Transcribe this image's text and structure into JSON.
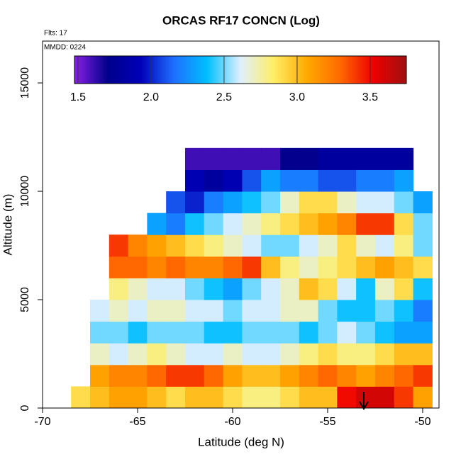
{
  "chart_data": {
    "type": "heatmap",
    "title": "ORCAS RF17 CONCN (Log)",
    "annotations": [
      "Flts: 17",
      "MMDD: 0224"
    ],
    "x_label": "Latitude (deg N)",
    "y_label": "Altitude (m)",
    "xlim": [
      -70,
      -49.14
    ],
    "ylim": [
      0,
      16930
    ],
    "xticks": [
      -70,
      -65,
      -60,
      -55,
      -50
    ],
    "yticks": [
      0,
      5000,
      10000,
      15000
    ],
    "x_bins": [
      -68.5,
      -67.5,
      -66.5,
      -65.5,
      -64.5,
      -63.5,
      -62.5,
      -61.5,
      -60.5,
      -59.5,
      -58.5,
      -57.5,
      -56.5,
      -55.5,
      -54.5,
      -53.5,
      -52.5,
      -51.5,
      -50.5,
      -49.5
    ],
    "y_bins": [
      0,
      1000,
      2000,
      3000,
      4000,
      5000,
      6000,
      7000,
      8000,
      9000,
      10000,
      11000,
      12000
    ],
    "z": [
      [
        2.9,
        3.0,
        3.1,
        3.1,
        3.0,
        2.9,
        3.0,
        3.0,
        2.9,
        2.8,
        2.8,
        2.9,
        3.0,
        3.0,
        3.5,
        3.6,
        3.6,
        3.4,
        3.1
      ],
      [
        null,
        3.1,
        3.2,
        3.2,
        3.3,
        3.4,
        3.4,
        3.3,
        3.1,
        3.0,
        3.0,
        3.1,
        3.2,
        3.3,
        3.2,
        3.1,
        3.2,
        3.3,
        3.4
      ],
      [
        null,
        2.7,
        2.6,
        2.7,
        2.8,
        2.7,
        2.6,
        2.6,
        2.7,
        2.6,
        2.6,
        2.7,
        2.8,
        2.9,
        2.8,
        2.8,
        2.9,
        3.0,
        3.0
      ],
      [
        null,
        2.5,
        2.5,
        2.4,
        2.5,
        2.5,
        2.5,
        2.4,
        2.4,
        2.5,
        2.5,
        2.5,
        2.4,
        2.5,
        2.6,
        2.5,
        2.4,
        2.3,
        2.3
      ],
      [
        null,
        2.6,
        2.7,
        2.6,
        2.7,
        2.7,
        2.6,
        2.6,
        2.5,
        2.6,
        2.6,
        2.7,
        2.7,
        2.5,
        2.4,
        2.4,
        2.5,
        2.4,
        2.2
      ],
      [
        null,
        null,
        2.8,
        2.7,
        2.6,
        2.6,
        2.5,
        2.4,
        2.3,
        2.5,
        2.6,
        2.7,
        3.0,
        2.9,
        2.6,
        2.4,
        2.7,
        2.9,
        2.4
      ],
      [
        null,
        null,
        3.3,
        3.3,
        3.2,
        3.3,
        3.2,
        3.2,
        3.3,
        3.4,
        3.0,
        2.8,
        2.7,
        2.8,
        2.9,
        3.0,
        3.1,
        3.0,
        2.9
      ],
      [
        null,
        null,
        3.4,
        3.2,
        3.1,
        3.0,
        2.9,
        2.8,
        2.7,
        2.6,
        2.5,
        2.5,
        2.6,
        2.7,
        2.9,
        2.7,
        2.6,
        2.8,
        2.5
      ],
      [
        null,
        null,
        null,
        null,
        2.3,
        2.2,
        2.4,
        2.5,
        2.6,
        2.7,
        2.8,
        2.9,
        3.0,
        3.1,
        3.2,
        3.4,
        3.4,
        2.9,
        2.5
      ],
      [
        null,
        null,
        null,
        null,
        null,
        2.1,
        2.0,
        2.2,
        2.3,
        2.4,
        2.5,
        2.7,
        2.9,
        2.9,
        2.7,
        2.6,
        2.6,
        2.5,
        2.3
      ],
      [
        null,
        null,
        null,
        null,
        null,
        null,
        1.9,
        1.8,
        1.9,
        2.1,
        2.3,
        2.2,
        2.2,
        2.1,
        2.1,
        2.2,
        2.2,
        2.3,
        null
      ],
      [
        null,
        null,
        null,
        null,
        null,
        null,
        1.6,
        1.6,
        1.6,
        1.6,
        1.6,
        1.7,
        1.7,
        1.8,
        1.8,
        1.8,
        1.8,
        1.8,
        null
      ]
    ],
    "zlim": [
      1.476,
      3.748
    ],
    "zticks": [
      1.5,
      {
        "value": 2,
        "label": "2.0"
      },
      2.5,
      {
        "value": 3,
        "label": "3.0"
      },
      3.5
    ],
    "colormap": [
      "#8b1fe6",
      "#00008b",
      "#0000b8",
      "#1e6fff",
      "#00bfff",
      "#dff0ff",
      "#ffee66",
      "#ffaa00",
      "#ff6a00",
      "#ee0000",
      "#a01010"
    ]
  }
}
